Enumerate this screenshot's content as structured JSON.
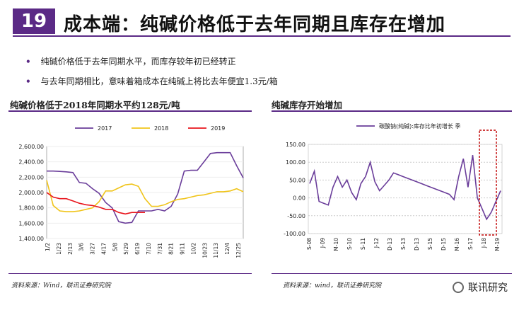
{
  "header": {
    "slide_number": "19",
    "title": "成本端：纯碱价格低于去年同期且库存在增加"
  },
  "bullets": [
    "纯碱价格低于去年同期水平，而库存较年初已经转正",
    "与去年同期相比，意味着箱成本在纯碱上将比去年便宜1.3元/箱"
  ],
  "left_panel": {
    "title": "纯碱价格低于2018年同期水平约128元/吨",
    "source": "资料来源：Wind，联讯证券研究院"
  },
  "right_panel": {
    "title": "纯碱库存开始增加",
    "source": "资料来源：wind，联讯证券研究院"
  },
  "watermark": {
    "text": "联讯研究",
    "icon": "wechat-icon"
  },
  "colors": {
    "accent": "#5b2a86",
    "s2017": "#6a3d9a",
    "s2018": "#f0c419",
    "s2019": "#e8141c",
    "highlight": "#c00000"
  },
  "chart_data": [
    {
      "type": "line",
      "title": "",
      "ylim": [
        1400,
        2600
      ],
      "yticks": [
        "1,400.00",
        "1,600.00",
        "1,800.00",
        "2,000.00",
        "2,200.00",
        "2,400.00",
        "2,600.00"
      ],
      "xtick_labels": [
        "1/2",
        "1/23",
        "2/13",
        "3/6",
        "3/27",
        "4/17",
        "5/8",
        "5/29",
        "6/19",
        "7/10",
        "7/31",
        "8/21",
        "9/11",
        "10/2",
        "10/23",
        "11/13",
        "12/4",
        "12/25"
      ],
      "legend_position": "top",
      "series": [
        {
          "name": "2017",
          "values": [
            2280,
            2280,
            2275,
            2270,
            2260,
            2130,
            2120,
            2050,
            1990,
            1870,
            1800,
            1620,
            1600,
            1610,
            1760,
            1760,
            1760,
            1780,
            1760,
            1820,
            1980,
            2280,
            2290,
            2290,
            2400,
            2510,
            2520,
            2520,
            2520,
            2350,
            2190
          ]
        },
        {
          "name": "2018",
          "values": [
            2160,
            1830,
            1760,
            1750,
            1750,
            1760,
            1780,
            1800,
            1880,
            2020,
            2020,
            2060,
            2100,
            2110,
            2080,
            1920,
            1820,
            1820,
            1840,
            1880,
            1910,
            1920,
            1940,
            1960,
            1970,
            1990,
            2010,
            2010,
            2020,
            2050,
            2010
          ]
        },
        {
          "name": "2019",
          "values": [
            2000,
            1940,
            1920,
            1920,
            1890,
            1860,
            1840,
            1830,
            1810,
            1780,
            1780,
            1740,
            1720,
            1740,
            1740,
            1740
          ]
        }
      ]
    },
    {
      "type": "line",
      "title": "",
      "ylim": [
        -100,
        150
      ],
      "yticks": [
        "-100.00",
        "-50.00",
        "0.00",
        "50.00",
        "100.00",
        "150.00"
      ],
      "xtick_labels": [
        "S-08",
        "J-09",
        "M-10",
        "S-10",
        "S-11",
        "J-12",
        "D-13",
        "S-13",
        "D-13",
        "S-15",
        "D-15",
        "M-16",
        "S-17",
        "J-18",
        "M-19"
      ],
      "legend_position": "top",
      "series": [
        {
          "name": "碳酸钠(纯碱):库存比年初增长 季",
          "values": [
            40,
            75,
            -10,
            -15,
            -20,
            30,
            60,
            30,
            50,
            15,
            -5,
            40,
            60,
            100,
            45,
            20,
            35,
            50,
            70,
            65,
            60,
            55,
            50,
            45,
            40,
            35,
            30,
            25,
            20,
            15,
            10,
            -5,
            60,
            110,
            30,
            120,
            0,
            -30,
            -60,
            -40,
            -10,
            20
          ]
        }
      ]
    }
  ]
}
